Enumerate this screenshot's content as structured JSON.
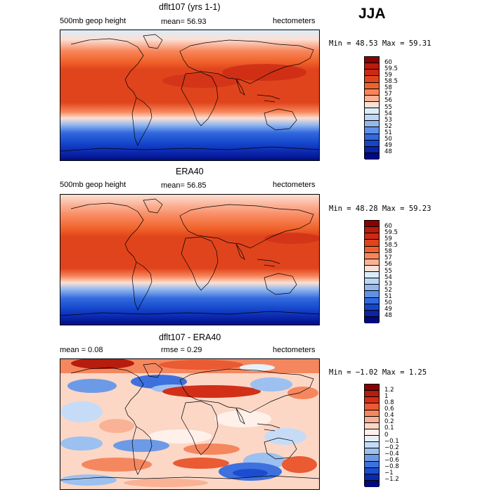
{
  "season": "JJA",
  "panels": [
    {
      "title": "dflt107 (yrs 1-1)",
      "left_label": "500mb geop height",
      "center_label": "mean=  56.93",
      "right_label": "hectometers",
      "minmax": "Min =  48.53 Max =  59.31",
      "levels": [
        "60",
        "59.5",
        "59",
        "58.5",
        "58",
        "57",
        "56",
        "55",
        "54",
        "53",
        "52",
        "51",
        "50",
        "49",
        "48"
      ],
      "colors": [
        "#8b0000",
        "#b71c0c",
        "#cc2a14",
        "#e0441c",
        "#f0622a",
        "#f8855a",
        "#fbb196",
        "#fbe0d4",
        "#dcedf9",
        "#bcd6f4",
        "#92b8ef",
        "#5f91e6",
        "#3269dd",
        "#1446cc",
        "#0a23a8",
        "#000a7a"
      ]
    },
    {
      "title": "ERA40",
      "left_label": "500mb geop height",
      "center_label": "mean=  56.85",
      "right_label": "hectometers",
      "minmax": "Min =  48.28 Max =  59.23",
      "levels": [
        "60",
        "59.5",
        "59",
        "58.5",
        "58",
        "57",
        "56",
        "55",
        "54",
        "53",
        "52",
        "51",
        "50",
        "49",
        "48"
      ],
      "colors": [
        "#8b0000",
        "#b71c0c",
        "#cc2a14",
        "#e0441c",
        "#f0622a",
        "#f8855a",
        "#fbb196",
        "#fbe0d4",
        "#dcedf9",
        "#bcd6f4",
        "#92b8ef",
        "#5f91e6",
        "#3269dd",
        "#1446cc",
        "#0a23a8",
        "#000a7a"
      ]
    },
    {
      "title": "dflt107 - ERA40",
      "left_label": "mean =    0.08",
      "center_label": "rmse =    0.29",
      "right_label": "hectometers",
      "minmax": "Min = −1.02 Max =   1.25",
      "levels": [
        "1.2",
        "1",
        "0.8",
        "0.6",
        "0.4",
        "0.2",
        "0.1",
        "0",
        "−0.1",
        "−0.2",
        "−0.4",
        "−0.6",
        "−0.8",
        "−1",
        "−1.2"
      ],
      "colors": [
        "#8b0000",
        "#b71c0c",
        "#d22f18",
        "#ea5a33",
        "#f5875f",
        "#f9b295",
        "#fcd7c6",
        "#fff1ea",
        "#e6f0fb",
        "#c6dcf6",
        "#9cc0f0",
        "#6c9ae7",
        "#3e71de",
        "#1b4dd0",
        "#0a2aac",
        "#000a7a"
      ]
    }
  ],
  "icons": {
    "continents": "world-coastline-icon"
  }
}
